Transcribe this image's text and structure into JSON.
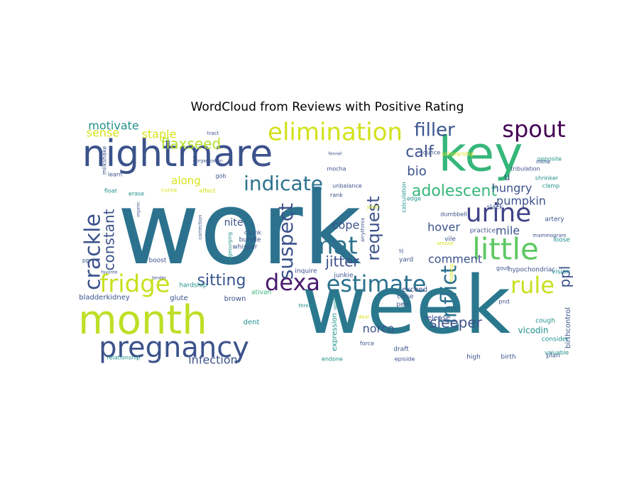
{
  "title": "WordCloud from Reviews with Positive Rating",
  "palette": "viridis",
  "background_color": "#ffffff",
  "words": [
    {
      "text": "work",
      "color": "#2c728e"
    },
    {
      "text": "week",
      "color": "#2a788e"
    },
    {
      "text": "nightmare",
      "color": "#3b528b"
    },
    {
      "text": "key",
      "color": "#35b779"
    },
    {
      "text": "month",
      "color": "#bddf26"
    },
    {
      "text": "pregnancy",
      "color": "#3b528b"
    },
    {
      "text": "elimination",
      "color": "#d2e21b"
    },
    {
      "text": "spout",
      "color": "#440154"
    },
    {
      "text": "urine",
      "color": "#414487"
    },
    {
      "text": "little",
      "color": "#5ec962"
    },
    {
      "text": "indicate",
      "color": "#2c728e"
    },
    {
      "text": "mat",
      "color": "#2c728e"
    },
    {
      "text": "estimate",
      "color": "#2c728e"
    },
    {
      "text": "dexa",
      "color": "#481a6c"
    },
    {
      "text": "fridge",
      "color": "#c8e020"
    },
    {
      "text": "rule",
      "color": "#c8e020"
    },
    {
      "text": "crackle",
      "color": "#3b528b"
    },
    {
      "text": "adolescent",
      "color": "#35b779"
    },
    {
      "text": "filler",
      "color": "#39568c"
    },
    {
      "text": "calf",
      "color": "#3b528b"
    },
    {
      "text": "sitting",
      "color": "#39568c"
    },
    {
      "text": "inflict",
      "color": "#2c728e"
    },
    {
      "text": "suspect",
      "color": "#3b528b"
    },
    {
      "text": "request",
      "color": "#3b528b"
    },
    {
      "text": "constant",
      "color": "#3b528b"
    },
    {
      "text": "flaxseed",
      "color": "#b5de2b"
    },
    {
      "text": "motivate",
      "color": "#21918c"
    },
    {
      "text": "bio",
      "color": "#3b528b"
    },
    {
      "text": "jitter",
      "color": "#3b528b"
    },
    {
      "text": "infection",
      "color": "#3b528b"
    },
    {
      "text": "sleeper",
      "color": "#3b528b"
    },
    {
      "text": "comment",
      "color": "#3b528b"
    },
    {
      "text": "pumpkin",
      "color": "#3b528b"
    },
    {
      "text": "hungry",
      "color": "#3b528b"
    },
    {
      "text": "cope",
      "color": "#3b528b"
    },
    {
      "text": "hover",
      "color": "#3b528b"
    },
    {
      "text": "mile",
      "color": "#3b528b"
    },
    {
      "text": "ppl",
      "color": "#3b528b"
    },
    {
      "text": "nite",
      "color": "#3b528b"
    },
    {
      "text": "norco",
      "color": "#3b528b"
    },
    {
      "text": "along",
      "color": "#d8e219"
    },
    {
      "text": "sense",
      "color": "#d8e219"
    },
    {
      "text": "staple",
      "color": "#d8e219"
    },
    {
      "text": "u",
      "color": "#3b528b"
    },
    {
      "text": "birthcontrol",
      "color": "#3b528b"
    },
    {
      "text": "vicodin",
      "color": "#21918c"
    },
    {
      "text": "bladderkidney",
      "color": "#3b528b"
    },
    {
      "text": "glute",
      "color": "#3b528b"
    },
    {
      "text": "brown",
      "color": "#3b528b"
    },
    {
      "text": "hardship",
      "color": "#21918c"
    },
    {
      "text": "dent",
      "color": "#21918c"
    },
    {
      "text": "expression",
      "color": "#21918c"
    },
    {
      "text": "release",
      "color": "#3b528b"
    },
    {
      "text": "exceed",
      "color": "#3b528b"
    },
    {
      "text": "inquire",
      "color": "#3b528b"
    },
    {
      "text": "junkie",
      "color": "#3b528b"
    },
    {
      "text": "yard",
      "color": "#3b528b"
    },
    {
      "text": "close",
      "color": "#3b528b"
    },
    {
      "text": "perc",
      "color": "#3b528b"
    },
    {
      "text": "ativan",
      "color": "#35b779"
    },
    {
      "text": "boost",
      "color": "#3b528b"
    },
    {
      "text": "whisper",
      "color": "#3b528b"
    },
    {
      "text": "bundle",
      "color": "#3b528b"
    },
    {
      "text": "chunk",
      "color": "#3b528b"
    },
    {
      "text": "practice",
      "color": "#3b528b"
    },
    {
      "text": "vile",
      "color": "#3b528b"
    },
    {
      "text": "dumbbell",
      "color": "#3b528b"
    },
    {
      "text": "hypochondriac",
      "color": "#3b528b"
    },
    {
      "text": "gout",
      "color": "#3b528b"
    },
    {
      "text": "vision",
      "color": "#21918c"
    },
    {
      "text": "loose",
      "color": "#21918c"
    },
    {
      "text": "cough",
      "color": "#21918c"
    },
    {
      "text": "consider",
      "color": "#21918c"
    },
    {
      "text": "plan",
      "color": "#3b528b"
    },
    {
      "text": "birth",
      "color": "#3b528b"
    },
    {
      "text": "high",
      "color": "#3b528b"
    },
    {
      "text": "draft",
      "color": "#3b528b"
    },
    {
      "text": "episide",
      "color": "#3b528b"
    },
    {
      "text": "force",
      "color": "#3b528b"
    },
    {
      "text": "endone",
      "color": "#21918c"
    },
    {
      "text": "relationship",
      "color": "#21918c"
    },
    {
      "text": "calculation",
      "color": "#21918c"
    },
    {
      "text": "edge",
      "color": "#21918c"
    },
    {
      "text": "slack",
      "color": "#3b528b"
    },
    {
      "text": "artery",
      "color": "#3b528b"
    },
    {
      "text": "clamp",
      "color": "#21918c"
    },
    {
      "text": "shrinker",
      "color": "#21918c"
    },
    {
      "text": "opposite",
      "color": "#21918c"
    },
    {
      "text": "mine",
      "color": "#3b528b"
    },
    {
      "text": "tribulation",
      "color": "#3b528b"
    },
    {
      "text": "ounce",
      "color": "#3b528b"
    },
    {
      "text": "scholarship",
      "color": "#d8e219"
    },
    {
      "text": "mocha",
      "color": "#3b528b"
    },
    {
      "text": "unbalance",
      "color": "#3b528b"
    },
    {
      "text": "gob",
      "color": "#3b528b"
    },
    {
      "text": "tract",
      "color": "#3b528b"
    },
    {
      "text": "organization",
      "color": "#3b528b"
    },
    {
      "text": "milkshake",
      "color": "#3b528b"
    },
    {
      "text": "learn",
      "color": "#3b528b"
    },
    {
      "text": "float",
      "color": "#21918c"
    },
    {
      "text": "erase",
      "color": "#21918c"
    },
    {
      "text": "curve",
      "color": "#d8e219"
    },
    {
      "text": "effect",
      "color": "#d8e219"
    },
    {
      "text": "organic",
      "color": "#3b528b"
    },
    {
      "text": "correction",
      "color": "#3b528b"
    },
    {
      "text": "urgesurging",
      "color": "#21918c"
    },
    {
      "text": "rank",
      "color": "#3b528b"
    },
    {
      "text": "arrythmia",
      "color": "#3b528b"
    },
    {
      "text": "yield",
      "color": "#d8e219"
    },
    {
      "text": "mammogram",
      "color": "#3b528b"
    },
    {
      "text": "amuse",
      "color": "#d8e219"
    },
    {
      "text": "making",
      "color": "#d8e219"
    },
    {
      "text": "upset",
      "color": "#21918c"
    },
    {
      "text": "deal",
      "color": "#d8e219"
    },
    {
      "text": "threat",
      "color": "#21918c"
    },
    {
      "text": "pnd",
      "color": "#3b528b"
    },
    {
      "text": "valuable",
      "color": "#21918c"
    },
    {
      "text": "pp",
      "color": "#3b528b"
    },
    {
      "text": "favorite",
      "color": "#3b528b"
    },
    {
      "text": "tender",
      "color": "#3b528b"
    },
    {
      "text": "keg",
      "color": "#3b528b"
    },
    {
      "text": "fennel",
      "color": "#3b528b"
    },
    {
      "text": "sj",
      "color": "#3b528b"
    }
  ]
}
